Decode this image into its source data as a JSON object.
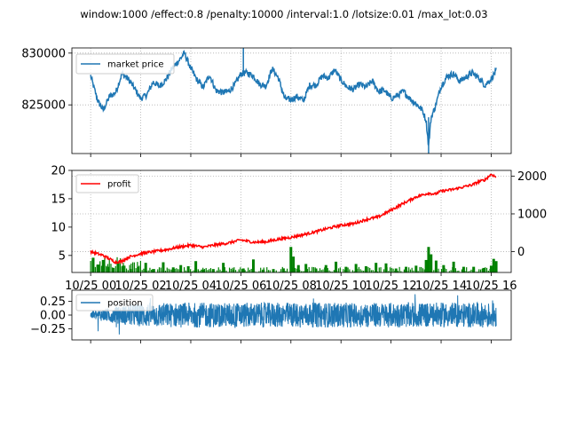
{
  "title": "window:1000 /effect:0.8 /penalty:10000 /interval:1.0 /lotsize:0.01 /max_lot:0.03",
  "colors": {
    "price": "#1f77b4",
    "profit": "#ff0000",
    "volume": "#008000",
    "position": "#1f77b4",
    "grid": "#b0b0b0"
  },
  "chart_data": [
    {
      "type": "line",
      "panel": "price",
      "ylim": [
        820300,
        830500
      ],
      "yticks": [
        825000,
        830000
      ],
      "ytick_labels": [
        "825000",
        "830000"
      ],
      "grid": true,
      "legend_position": "upper-left",
      "series": [
        {
          "name": "market price",
          "x": [
            0,
            0.15,
            0.3,
            0.5,
            0.75,
            1.0,
            1.25,
            1.5,
            1.75,
            2.0,
            2.25,
            2.5,
            2.75,
            3.0,
            3.25,
            3.5,
            3.75,
            4.0,
            4.25,
            4.5,
            4.75,
            5.0,
            5.25,
            5.5,
            5.75,
            6.0,
            6.25,
            6.5,
            6.75,
            7.0,
            7.25,
            7.5,
            7.75,
            8.0,
            8.25,
            8.5,
            8.75,
            9.0,
            9.25,
            9.5,
            9.75,
            10.0,
            10.25,
            10.5,
            10.75,
            11.0,
            11.25,
            11.5,
            11.75,
            12.0,
            12.25,
            12.5,
            12.75,
            13.0,
            13.25,
            13.4,
            13.5,
            13.6,
            13.75,
            14.0,
            14.25,
            14.5,
            14.75,
            15.0,
            15.25,
            15.5,
            15.75,
            16.0,
            16.2
          ],
          "values": [
            827800,
            826500,
            825300,
            824500,
            825800,
            826200,
            828000,
            827500,
            826600,
            825600,
            826000,
            827200,
            826800,
            827400,
            828500,
            829200,
            830000,
            828500,
            827400,
            826700,
            827900,
            826400,
            826200,
            826300,
            826900,
            828000,
            828100,
            827800,
            827000,
            826800,
            828500,
            827600,
            825600,
            825500,
            825800,
            825400,
            826900,
            826900,
            827800,
            827600,
            828400,
            827400,
            826700,
            826500,
            827000,
            826700,
            827300,
            826300,
            826400,
            825600,
            825900,
            826300,
            825600,
            825100,
            824500,
            823500,
            821000,
            823800,
            824700,
            826800,
            827800,
            828000,
            827300,
            827700,
            828100,
            827600,
            826900,
            827500,
            828300
          ]
        }
      ]
    },
    {
      "type": "line",
      "panel": "profit",
      "ylim": [
        2.0,
        20.0
      ],
      "yticks": [
        5,
        10,
        15,
        20
      ],
      "ytick_labels": [
        "5",
        "10",
        "15",
        "20"
      ],
      "ylim_right": [
        -550,
        2150
      ],
      "yticks_right": [
        0,
        1000,
        2000
      ],
      "ytick_labels_right": [
        "0",
        "1000",
        "2000"
      ],
      "grid": true,
      "legend_position": "upper-left",
      "series": [
        {
          "name": "profit",
          "axis": "right",
          "x": [
            0,
            0.5,
            1.0,
            1.25,
            1.5,
            2.0,
            2.5,
            3.0,
            3.5,
            4.0,
            4.5,
            5.0,
            5.5,
            6.0,
            6.5,
            7.0,
            7.5,
            8.0,
            8.5,
            9.0,
            9.5,
            10.0,
            10.5,
            11.0,
            11.5,
            12.0,
            12.5,
            13.0,
            13.25,
            13.5,
            13.75,
            14.0,
            14.5,
            15.0,
            15.25,
            15.5,
            15.75,
            16.0,
            16.2
          ],
          "values": [
            0,
            -100,
            -280,
            -250,
            -150,
            -50,
            0,
            50,
            120,
            170,
            120,
            180,
            230,
            310,
            250,
            260,
            330,
            380,
            450,
            530,
            620,
            700,
            740,
            850,
            920,
            1100,
            1280,
            1450,
            1500,
            1550,
            1520,
            1600,
            1650,
            1730,
            1770,
            1850,
            1900,
            2050,
            1970
          ]
        },
        {
          "name": "",
          "type": "bar",
          "axis": "left",
          "x": [
            0.1,
            0.3,
            0.5,
            0.7,
            0.9,
            1.1,
            1.3,
            1.6,
            1.9,
            2.2,
            2.5,
            2.9,
            3.3,
            3.6,
            3.9,
            4.2,
            4.5,
            4.9,
            5.3,
            5.7,
            6.1,
            6.5,
            6.9,
            7.3,
            7.7,
            8.0,
            8.1,
            8.3,
            8.6,
            9.0,
            9.4,
            9.8,
            10.2,
            10.6,
            11.0,
            11.4,
            11.8,
            12.2,
            12.6,
            13.0,
            13.4,
            13.5,
            13.6,
            13.8,
            14.1,
            14.5,
            14.9,
            15.3,
            15.7,
            16.0,
            16.1,
            16.2
          ],
          "values": [
            4.6,
            3.4,
            4.2,
            3.0,
            2.8,
            3.9,
            3.2,
            2.6,
            3.0,
            3.7,
            2.6,
            3.8,
            2.9,
            3.3,
            3.1,
            4.0,
            2.5,
            2.6,
            3.7,
            2.5,
            2.7,
            4.3,
            2.5,
            2.6,
            2.7,
            6.5,
            4.8,
            3.3,
            3.5,
            2.7,
            3.3,
            3.9,
            3.0,
            3.5,
            3.1,
            3.7,
            3.6,
            2.7,
            3.0,
            3.2,
            4.2,
            6.5,
            5.2,
            4.1,
            3.3,
            3.9,
            3.0,
            3.0,
            2.8,
            3.2,
            4.4,
            4.0
          ]
        }
      ]
    },
    {
      "type": "line",
      "panel": "position",
      "ylim": [
        -0.45,
        0.45
      ],
      "yticks": [
        -0.25,
        0.0,
        0.25
      ],
      "ytick_labels": [
        "−0.25",
        "0.00",
        "0.25"
      ],
      "grid": false,
      "legend_position": "upper-left",
      "x_tick_labels": [
        "10/25 00",
        "10/25 02",
        "10/25 04",
        "10/25 06",
        "10/25 08",
        "10/25 10",
        "10/25 12",
        "10/25 14",
        "10/25 16"
      ],
      "xlim": [
        -0.75,
        16.8
      ],
      "series": [
        {
          "name": "position",
          "amplitude": 0.3
        }
      ]
    }
  ]
}
